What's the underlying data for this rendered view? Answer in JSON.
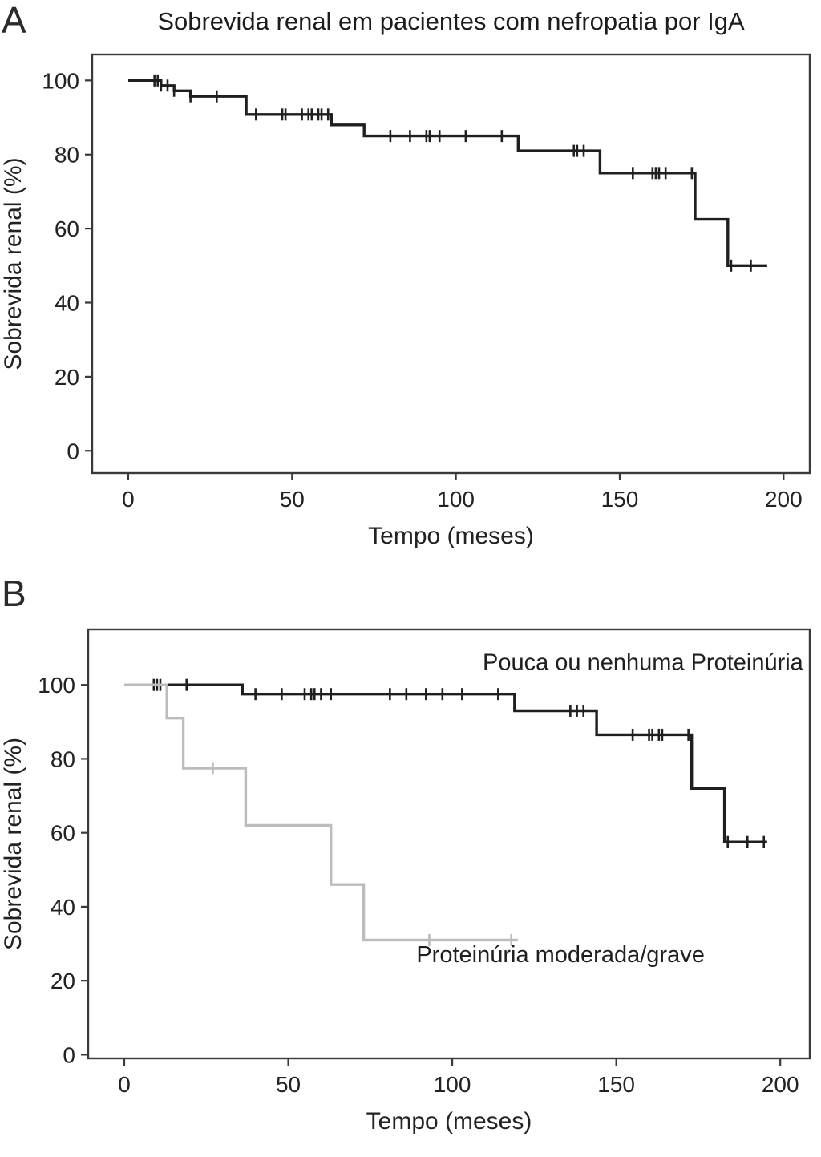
{
  "page": {
    "background": "#ffffff",
    "curve_dark": "#1f1f1f",
    "curve_gray": "#bcbcbc"
  },
  "panels": [
    {
      "letter": "A"
    },
    {
      "letter": "B"
    }
  ],
  "chart_data": [
    {
      "type": "line",
      "subtype": "kaplan_meier_step",
      "panel": "A",
      "title": "Sobrevida renal em pacientes com nefropatia por IgA",
      "xlabel": "Tempo (meses)",
      "ylabel": "Sobrevida renal (%)",
      "xticks": [
        0,
        50,
        100,
        150,
        200
      ],
      "yticks": [
        0,
        20,
        40,
        60,
        80,
        100
      ],
      "xlim": [
        -11,
        208
      ],
      "ylim": [
        -6,
        107
      ],
      "grid": false,
      "legend_position": "none",
      "series": [
        {
          "label": "",
          "color": "#1f1f1f",
          "steps": [
            [
              0,
              100
            ],
            [
              10,
              98.6
            ],
            [
              14,
              97.2
            ],
            [
              19,
              95.7
            ],
            [
              36,
              90.8
            ],
            [
              62,
              88
            ],
            [
              72,
              85
            ],
            [
              119,
              81
            ],
            [
              144,
              75
            ],
            [
              173,
              62.5
            ],
            [
              183,
              50
            ],
            [
              195,
              50
            ]
          ],
          "censors": [
            [
              8,
              100
            ],
            [
              9,
              100
            ],
            [
              10,
              98.6
            ],
            [
              12,
              98.6
            ],
            [
              14,
              97.2
            ],
            [
              19,
              95.7
            ],
            [
              27,
              95.7
            ],
            [
              39,
              90.8
            ],
            [
              47,
              90.8
            ],
            [
              48,
              90.8
            ],
            [
              53,
              90.8
            ],
            [
              55,
              90.8
            ],
            [
              56,
              90.8
            ],
            [
              58,
              90.8
            ],
            [
              59,
              90.8
            ],
            [
              61,
              90.8
            ],
            [
              80,
              85
            ],
            [
              86,
              85
            ],
            [
              91,
              85
            ],
            [
              92,
              85
            ],
            [
              95,
              85
            ],
            [
              103,
              85
            ],
            [
              114,
              85
            ],
            [
              136,
              81
            ],
            [
              137,
              81
            ],
            [
              139,
              81
            ],
            [
              154,
              75
            ],
            [
              160,
              75
            ],
            [
              161,
              75
            ],
            [
              162,
              75
            ],
            [
              164,
              75
            ],
            [
              172,
              75
            ],
            [
              184,
              50
            ],
            [
              190,
              50
            ]
          ]
        }
      ]
    },
    {
      "type": "line",
      "subtype": "kaplan_meier_step",
      "panel": "B",
      "title": "",
      "xlabel": "Tempo (meses)",
      "ylabel": "Sobrevida renal (%)",
      "xticks": [
        0,
        50,
        100,
        150,
        200
      ],
      "yticks": [
        0,
        20,
        40,
        60,
        80,
        100
      ],
      "xlim": [
        -11,
        209
      ],
      "ylim": [
        -1,
        115
      ],
      "grid": false,
      "legend_position": "inline-annotations",
      "series": [
        {
          "label": "Pouca ou nenhuma Proteinúria",
          "label_pos": {
            "x": 207,
            "y": 104,
            "anchor": "end"
          },
          "color": "#1f1f1f",
          "steps": [
            [
              0,
              100
            ],
            [
              36,
              97.5
            ],
            [
              119,
              93
            ],
            [
              144,
              86.5
            ],
            [
              173,
              72
            ],
            [
              183,
              57.5
            ],
            [
              196,
              57.5
            ]
          ],
          "censors": [
            [
              9,
              100
            ],
            [
              10,
              100
            ],
            [
              11,
              100
            ],
            [
              19,
              100
            ],
            [
              40,
              97.5
            ],
            [
              48,
              97.5
            ],
            [
              55,
              97.5
            ],
            [
              57,
              97.5
            ],
            [
              58,
              97.5
            ],
            [
              60,
              97.5
            ],
            [
              63,
              97.5
            ],
            [
              81,
              97.5
            ],
            [
              86,
              97.5
            ],
            [
              92,
              97.5
            ],
            [
              97,
              97.5
            ],
            [
              103,
              97.5
            ],
            [
              114,
              97.5
            ],
            [
              136,
              93
            ],
            [
              138,
              93
            ],
            [
              140,
              93
            ],
            [
              155,
              86.5
            ],
            [
              160,
              86.5
            ],
            [
              161,
              86.5
            ],
            [
              163,
              86.5
            ],
            [
              164,
              86.5
            ],
            [
              172,
              86.5
            ],
            [
              184,
              57.5
            ],
            [
              190,
              57.5
            ],
            [
              195,
              57.5
            ]
          ]
        },
        {
          "label": "Proteinúria moderada/grave",
          "label_pos": {
            "x": 133,
            "y": 25,
            "anchor": "middle"
          },
          "color": "#bcbcbc",
          "steps": [
            [
              0,
              100
            ],
            [
              13,
              91
            ],
            [
              18,
              77.5
            ],
            [
              37,
              62
            ],
            [
              63,
              46
            ],
            [
              73,
              31
            ],
            [
              120,
              31
            ]
          ],
          "censors": [
            [
              27,
              77.5
            ],
            [
              93,
              31
            ],
            [
              118,
              31
            ]
          ]
        }
      ]
    }
  ]
}
